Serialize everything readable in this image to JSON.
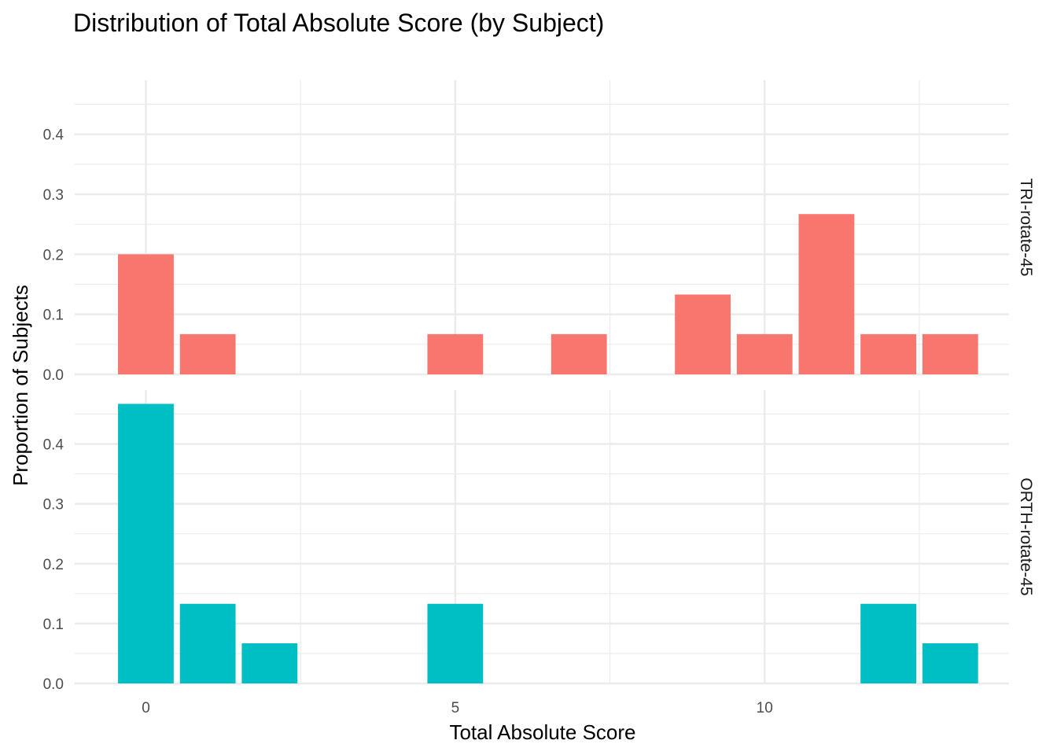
{
  "chart_data": {
    "type": "bar",
    "title": "Distribution of Total Absolute Score (by Subject)",
    "xlabel": "Total Absolute Score",
    "ylabel": "Proportion of Subjects",
    "x_ticks": [
      0,
      5,
      10
    ],
    "y_ticks": [
      0.0,
      0.1,
      0.2,
      0.3,
      0.4
    ],
    "y_tick_labels": [
      "0.0",
      "0.1",
      "0.2",
      "0.3",
      "0.4"
    ],
    "xlim": [
      -1.15,
      13.95
    ],
    "ylim": [
      0,
      0.49
    ],
    "grid": true,
    "facet_strip_position": "right",
    "panels": [
      {
        "label": "TRI-rotate-45",
        "color": "#F8766D",
        "x": [
          0,
          1,
          5,
          7,
          9,
          10,
          11,
          12,
          13
        ],
        "values": [
          0.2,
          0.067,
          0.067,
          0.067,
          0.133,
          0.067,
          0.267,
          0.067,
          0.067
        ]
      },
      {
        "label": "ORTH-rotate-45",
        "color": "#00BFC4",
        "x": [
          0,
          1,
          2,
          5,
          12,
          13
        ],
        "values": [
          0.467,
          0.133,
          0.067,
          0.133,
          0.133,
          0.067
        ]
      }
    ]
  }
}
